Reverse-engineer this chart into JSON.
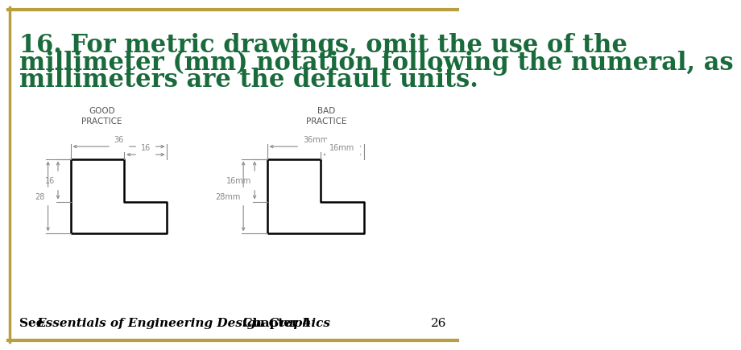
{
  "title_line1": "16. For metric drawings, omit the use of the",
  "title_line2": "millimeter (mm) notation following the numeral, as",
  "title_line3": "millimeters are the default units.",
  "title_color": "#1a6b3c",
  "title_fontsize": 22,
  "bg_color": "#ffffff",
  "border_color": "#b8a040",
  "label_fontsize": 7.5,
  "label_color": "#555555",
  "dim_color": "#888888",
  "shape_color": "#000000",
  "footer_fontsize": 11,
  "page_number": "26"
}
